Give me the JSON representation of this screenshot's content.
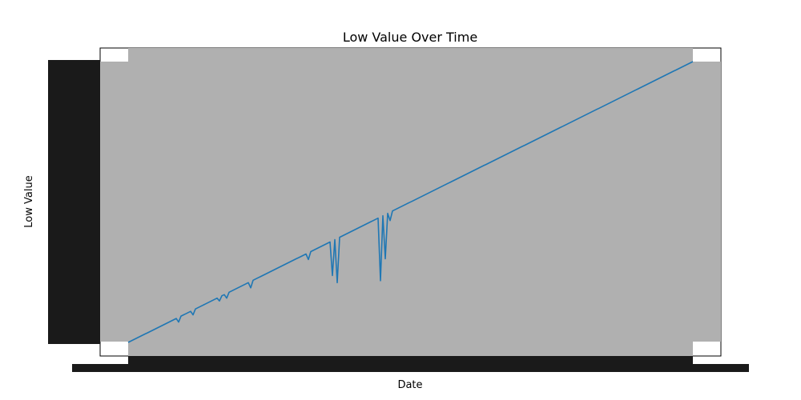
{
  "chart_data": {
    "type": "line",
    "title": "Low Value Over Time",
    "xlabel": "Date",
    "ylabel": "Low Value",
    "grid": false,
    "legend": "none",
    "colors": {
      "line": "#1f77b4",
      "label_overlap": "#b0b0b0",
      "axes": "#000000"
    },
    "x": [
      0,
      3,
      6,
      9,
      12,
      15,
      18,
      21,
      24,
      27,
      30,
      33,
      36,
      39,
      42,
      45,
      48,
      51,
      54,
      57,
      60,
      63,
      66,
      69,
      72,
      75,
      78,
      81,
      84,
      87,
      90,
      93,
      96,
      99,
      102,
      105,
      108,
      111,
      114,
      117,
      120,
      123,
      126,
      129,
      132,
      135,
      138,
      141,
      144,
      147,
      150,
      153,
      156,
      159,
      162,
      165,
      168,
      171,
      174,
      177,
      180,
      183,
      186,
      189,
      192,
      195,
      198,
      201,
      204,
      207,
      210,
      213,
      216,
      219,
      222,
      225,
      228,
      231,
      234,
      237,
      240,
      243,
      246,
      249,
      252,
      255,
      258,
      261,
      264,
      267,
      270,
      273,
      276,
      279,
      282,
      285,
      288,
      291,
      294,
      297,
      300,
      303,
      306,
      309,
      312,
      315,
      318,
      321,
      324,
      327,
      330,
      333,
      336,
      339,
      342,
      345,
      348,
      351,
      354,
      357,
      360,
      363,
      366,
      369,
      372,
      375,
      378,
      381,
      384,
      387,
      390,
      393,
      396,
      399,
      402,
      405,
      408,
      411,
      414,
      417,
      420,
      423,
      426,
      429,
      432,
      435,
      438,
      441,
      444,
      447,
      450,
      453,
      456,
      459,
      462,
      465,
      468,
      471,
      474,
      477,
      480,
      483,
      486,
      489,
      492,
      495,
      498,
      501,
      504,
      507,
      510,
      513,
      516,
      519,
      522,
      525,
      528,
      531,
      534,
      537,
      540,
      543,
      546,
      549,
      552,
      555,
      558,
      561,
      564,
      567,
      570,
      573,
      576,
      579,
      582,
      585,
      588,
      591,
      594,
      597,
      600,
      603,
      606,
      609,
      612,
      615,
      618,
      621,
      624,
      627,
      630,
      633,
      636,
      639,
      642,
      645,
      648,
      651,
      654,
      657,
      660,
      663,
      666,
      669,
      672,
      675,
      678,
      681,
      684,
      687,
      690,
      693,
      696,
      699,
      702,
      705
    ],
    "series": [
      {
        "values": [
          0,
          3,
          6,
          9,
          12,
          15,
          18,
          21,
          24,
          27,
          30,
          33,
          36,
          39,
          42,
          45,
          48,
          51,
          54,
          57,
          60,
          51,
          66,
          69,
          72,
          75,
          78,
          69,
          84,
          87,
          90,
          93,
          96,
          99,
          102,
          105,
          108,
          111,
          104,
          117,
          120,
          111,
          126,
          129,
          132,
          135,
          138,
          141,
          144,
          147,
          150,
          137,
          156,
          159,
          162,
          165,
          168,
          171,
          174,
          177,
          180,
          183,
          186,
          189,
          192,
          195,
          198,
          201,
          204,
          207,
          210,
          213,
          216,
          219,
          222,
          208,
          228,
          231,
          234,
          237,
          240,
          243,
          246,
          249,
          252,
          168,
          258,
          150,
          264,
          267,
          270,
          273,
          276,
          279,
          282,
          285,
          288,
          291,
          294,
          297,
          300,
          303,
          306,
          309,
          312,
          155,
          318,
          210,
          324,
          306,
          330,
          333,
          336,
          339,
          342,
          345,
          348,
          351,
          354,
          357,
          360,
          363,
          366,
          369,
          372,
          375,
          378,
          381,
          384,
          387,
          390,
          393,
          396,
          399,
          402,
          405,
          408,
          411,
          414,
          417,
          420,
          423,
          426,
          429,
          432,
          435,
          438,
          441,
          444,
          447,
          450,
          453,
          456,
          459,
          462,
          465,
          468,
          471,
          474,
          477,
          480,
          483,
          486,
          489,
          492,
          495,
          498,
          501,
          504,
          507,
          510,
          513,
          516,
          519,
          522,
          525,
          528,
          531,
          534,
          537,
          540,
          543,
          546,
          549,
          552,
          555,
          558,
          561,
          564,
          567,
          570,
          573,
          576,
          579,
          582,
          585,
          588,
          591,
          594,
          597,
          600,
          603,
          606,
          609,
          612,
          615,
          618,
          621,
          624,
          627,
          630,
          633,
          636,
          639,
          642,
          645,
          648,
          651,
          654,
          657,
          660,
          663,
          666,
          669,
          672,
          675,
          678,
          681,
          684,
          687,
          690,
          693,
          696,
          699,
          702,
          705
        ]
      }
    ],
    "xlim": [
      0,
      705
    ],
    "ylim": [
      0,
      705
    ]
  }
}
